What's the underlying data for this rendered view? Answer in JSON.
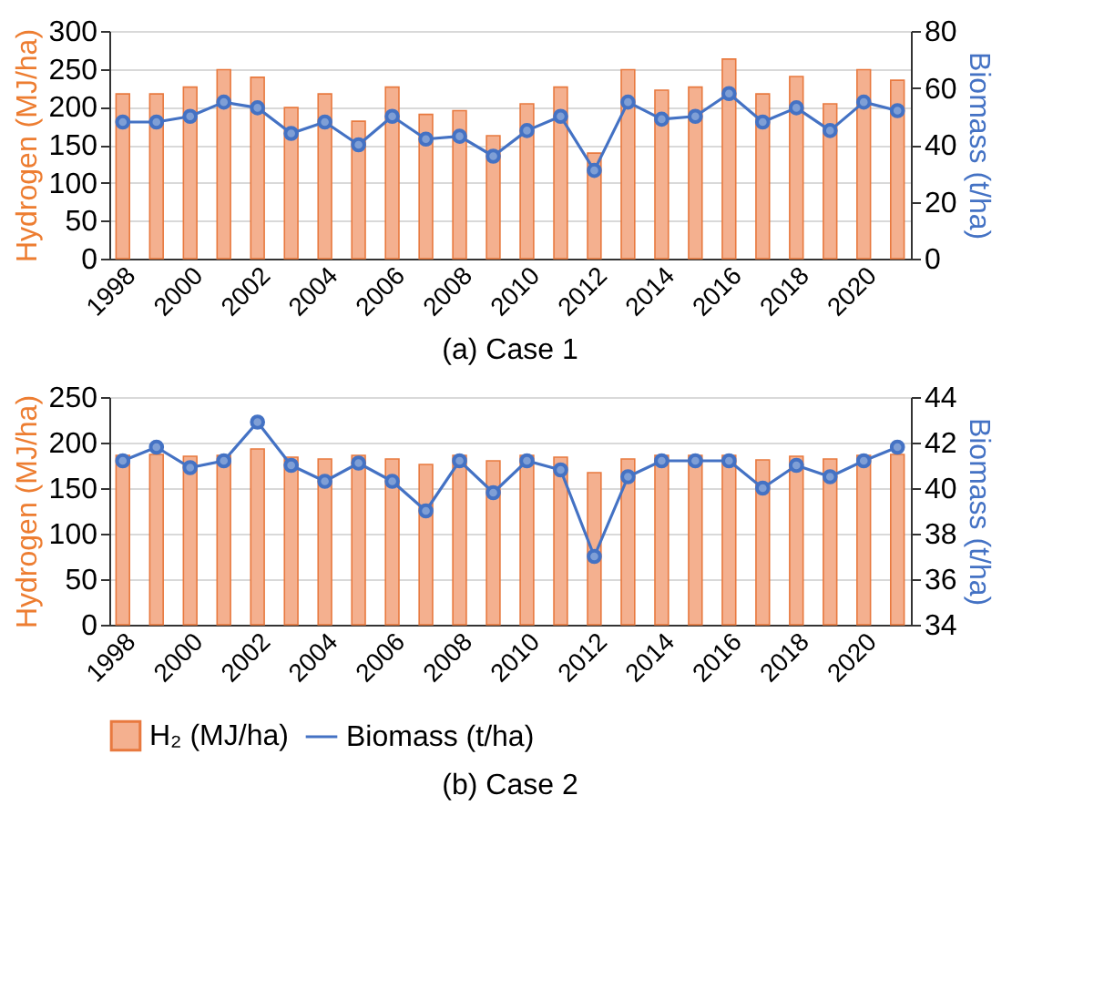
{
  "chart_data": [
    {
      "type": "bar",
      "title": "(a) Case 1",
      "ylabel": "Hydrogen (MJ/ha)",
      "y2label": "Biomass (t/ha)",
      "categories": [
        "1998",
        null,
        "2000",
        null,
        "2002",
        null,
        "2004",
        null,
        "2006",
        null,
        "2008",
        null,
        "2010",
        null,
        "2012",
        null,
        "2014",
        null,
        "2016",
        null,
        "2018",
        null,
        "2020",
        null
      ],
      "series": [
        {
          "color": "#f4b08f",
          "values": [
            217,
            217,
            226,
            249,
            239,
            199,
            217,
            181,
            226,
            190,
            195,
            162,
            204,
            226,
            139,
            249,
            222,
            226,
            263,
            217,
            240,
            204,
            249,
            235
          ]
        },
        {
          "type": "line",
          "axis": "y2",
          "color": "#4472c4",
          "values": [
            48,
            48,
            50,
            55,
            53,
            44,
            48,
            40,
            50,
            42,
            43,
            36,
            45,
            50,
            31,
            55,
            49,
            50,
            58,
            48,
            53,
            45,
            55,
            52
          ]
        }
      ],
      "ylim": [
        0,
        300
      ],
      "yticks": [
        0,
        50,
        100,
        150,
        200,
        250,
        300
      ],
      "y2lim": [
        0,
        80
      ],
      "y2ticks": [
        0,
        20,
        40,
        60,
        80
      ],
      "grid": "y",
      "marker": "circle",
      "line_style": "solid"
    },
    {
      "type": "bar",
      "title": "(b) Case 2",
      "ylabel": "Hydrogen (MJ/ha)",
      "y2label": "Biomass (t/ha)",
      "categories": [
        "1998",
        null,
        "2000",
        null,
        "2002",
        null,
        "2004",
        null,
        "2006",
        null,
        "2008",
        null,
        "2010",
        null,
        "2012",
        null,
        "2014",
        null,
        "2016",
        null,
        "2018",
        null,
        "2020",
        null
      ],
      "series": [
        {
          "name": "H₂ (MJ/ha)",
          "color": "#f4b08f",
          "values": [
            186,
            187,
            185,
            186,
            193,
            184,
            182,
            186,
            182,
            176,
            186,
            180,
            186,
            184,
            167,
            182,
            186,
            186,
            186,
            181,
            185,
            182,
            186,
            187
          ]
        },
        {
          "name": "Biomass (t/ha)",
          "type": "line",
          "axis": "y2",
          "color": "#4472c4",
          "values": [
            41.2,
            41.8,
            40.9,
            41.2,
            42.9,
            41.0,
            40.3,
            41.1,
            40.3,
            39.0,
            41.2,
            39.8,
            41.2,
            40.8,
            37.0,
            40.5,
            41.2,
            41.2,
            41.2,
            40.0,
            41.0,
            40.5,
            41.2,
            41.8
          ]
        }
      ],
      "ylim": [
        0,
        250
      ],
      "yticks": [
        0,
        50,
        100,
        150,
        200,
        250
      ],
      "y2lim": [
        34,
        44
      ],
      "y2ticks": [
        34,
        36,
        38,
        40,
        42,
        44
      ],
      "grid": "y",
      "marker": "circle",
      "line_style": "solid",
      "legend": "bottom"
    }
  ]
}
